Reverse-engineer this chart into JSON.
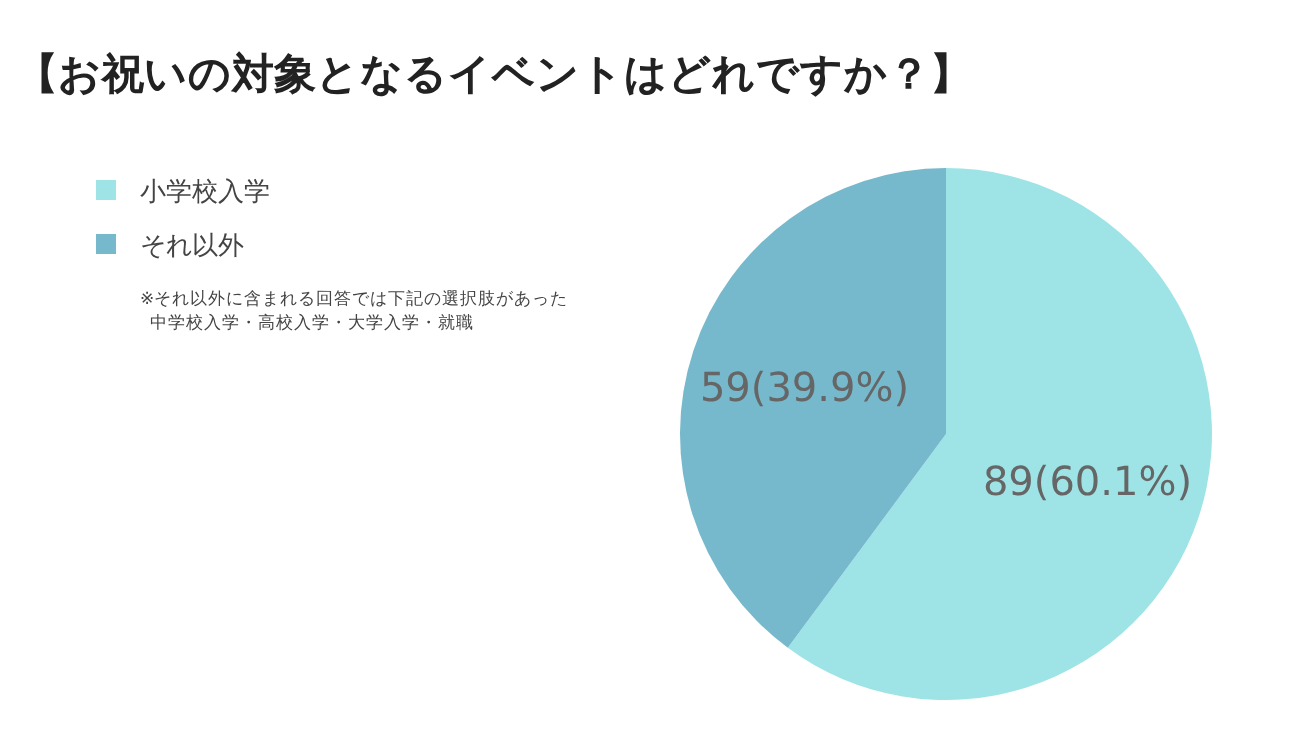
{
  "chart_data": {
    "type": "pie",
    "title": "【お祝いの対象となるイベントはどれですか？】",
    "categories": [
      "小学校入学",
      "それ以外"
    ],
    "values": [
      89,
      59
    ],
    "colors": [
      "#9ee4e7",
      "#77b9cc"
    ],
    "value_labels": [
      "89(60.1%)",
      "59(39.9%)"
    ],
    "legend": "top left",
    "annotations": [
      "※それ以外に含まれる回答では下記の選択肢があった",
      "中学校入学・高校入学・大学入学・就職"
    ]
  }
}
